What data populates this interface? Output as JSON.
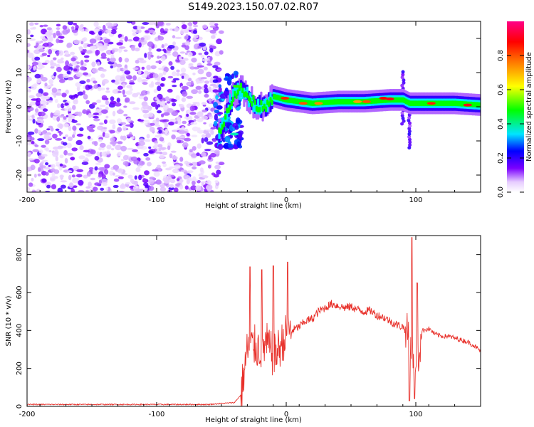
{
  "title": "S149.2023.150.07.02.R07",
  "chart_data": [
    {
      "type": "heatmap",
      "xlabel": "Height of straight line (km)",
      "ylabel": "Frequency (Hz)",
      "xlim": [
        -200,
        150
      ],
      "ylim": [
        -25,
        25
      ],
      "x_ticks": [
        -200,
        -100,
        0,
        100
      ],
      "y_ticks": [
        -20,
        -10,
        0,
        10,
        20
      ],
      "colorbar": {
        "label": "Normalized spectral amplitude",
        "range": [
          0,
          1
        ],
        "ticks": [
          "0.0",
          "0.2",
          "0.4",
          "0.6",
          "0.8"
        ],
        "colormap": [
          "#ffffff",
          "#7b00ff",
          "#0000ff",
          "#00e5ff",
          "#00ff00",
          "#ffff00",
          "#ff0000",
          "#ff00aa"
        ]
      },
      "noise_region": {
        "x_range": [
          -200,
          -50
        ],
        "freq_range": [
          -25,
          25
        ],
        "amplitude": "low, random 0.05-0.25"
      },
      "signal_track": [
        {
          "x": -52,
          "freq": -8
        },
        {
          "x": -48,
          "freq": -5
        },
        {
          "x": -45,
          "freq": 0
        },
        {
          "x": -40,
          "freq": 4
        },
        {
          "x": -35,
          "freq": 5
        },
        {
          "x": -30,
          "freq": 3
        },
        {
          "x": -25,
          "freq": 1
        },
        {
          "x": -20,
          "freq": 0
        },
        {
          "x": -15,
          "freq": 1
        },
        {
          "x": -10,
          "freq": 3
        },
        {
          "x": 0,
          "freq": 2
        },
        {
          "x": 20,
          "freq": 1
        },
        {
          "x": 40,
          "freq": 1.5
        },
        {
          "x": 60,
          "freq": 1.5
        },
        {
          "x": 80,
          "freq": 2
        },
        {
          "x": 90,
          "freq": 2
        },
        {
          "x": 95,
          "freq": 1
        },
        {
          "x": 110,
          "freq": 1
        },
        {
          "x": 130,
          "freq": 1
        },
        {
          "x": 150,
          "freq": 0.5
        }
      ]
    },
    {
      "type": "line",
      "xlabel": "Height of straight line (km)",
      "ylabel": "SNR (10 * v/v)",
      "xlim": [
        -200,
        150
      ],
      "ylim": [
        0,
        900
      ],
      "x_ticks": [
        -200,
        -100,
        0,
        100
      ],
      "y_ticks": [
        0,
        200,
        400,
        600,
        800
      ],
      "color": "#e8302a",
      "series": [
        {
          "x": [
            -200,
            -150,
            -100,
            -60,
            -40,
            -35,
            -30,
            -25,
            -20,
            -15,
            -10,
            -5,
            0,
            5,
            10,
            15,
            20,
            25,
            30,
            35,
            40,
            45,
            50,
            55,
            60,
            65,
            70,
            75,
            80,
            85,
            90,
            95,
            100,
            105,
            110,
            115,
            120,
            125,
            130,
            135,
            140,
            145,
            150
          ],
          "y": [
            10,
            10,
            10,
            10,
            20,
            60,
            300,
            320,
            300,
            330,
            260,
            310,
            380,
            400,
            420,
            450,
            460,
            500,
            520,
            540,
            530,
            520,
            525,
            510,
            500,
            505,
            480,
            470,
            450,
            430,
            420,
            380,
            150,
            400,
            410,
            380,
            370,
            370,
            360,
            350,
            340,
            320,
            290
          ]
        }
      ],
      "spikes": [
        {
          "x": -28,
          "y": 735
        },
        {
          "x": -19,
          "y": 720
        },
        {
          "x": -10,
          "y": 740
        },
        {
          "x": 1,
          "y": 760
        },
        {
          "x": 97,
          "y": 890
        },
        {
          "x": 101,
          "y": 650
        }
      ],
      "dips": [
        {
          "x": 95,
          "y": 30
        },
        {
          "x": 99,
          "y": 40
        }
      ]
    }
  ]
}
